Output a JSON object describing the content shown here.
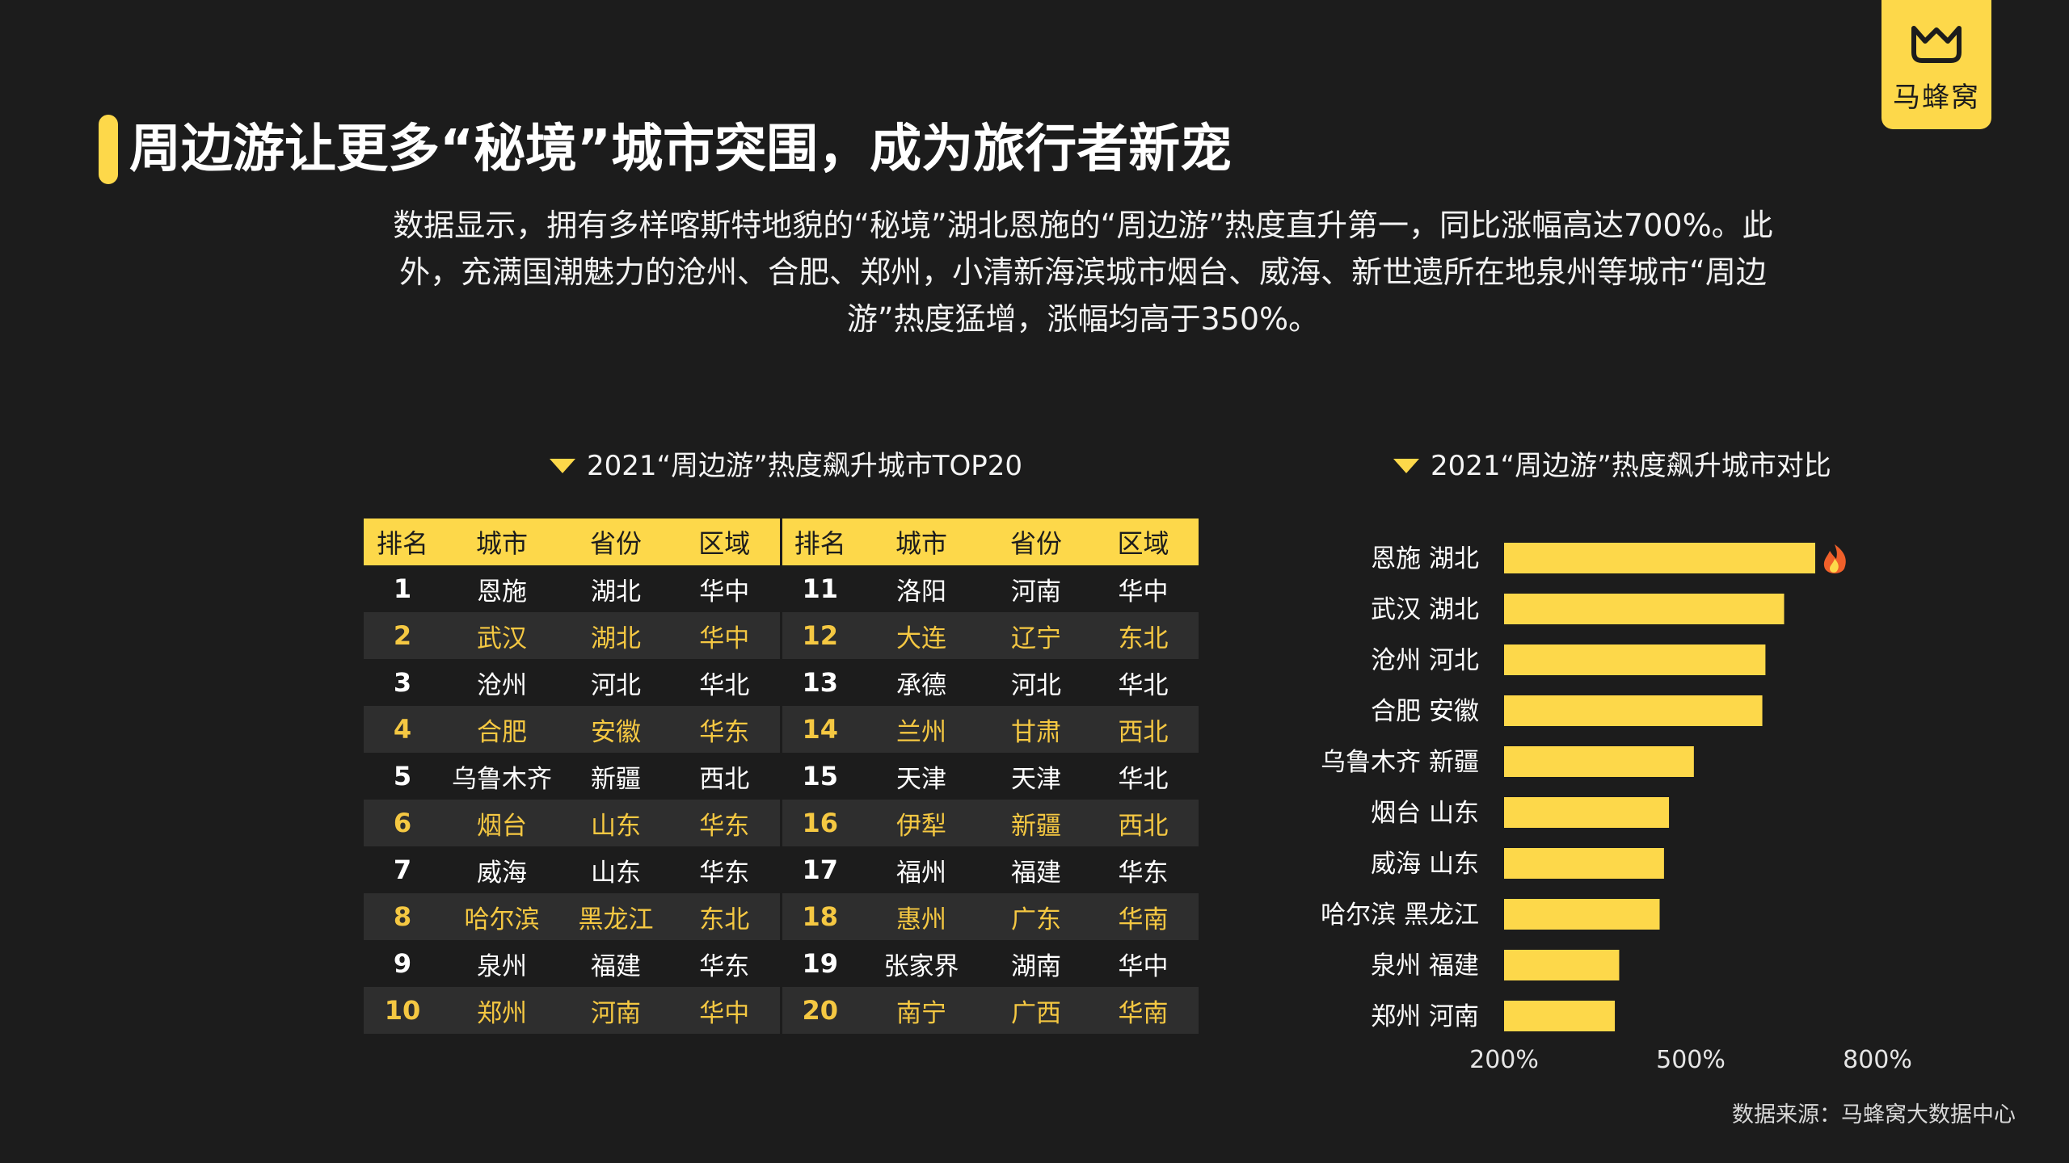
{
  "logo": {
    "brand": "马蜂窝"
  },
  "title": "周边游让更多“秘境”城市突围，成为旅行者新宠",
  "intro": "数据显示，拥有多样喀斯特地貌的“秘境”湖北恩施的“周边游”热度直升第一，同比涨幅高达700%。此外，充满国潮魅力的沧州、合肥、郑州，小清新海滨城市烟台、威海、新世遗所在地泉州等城市“周边游”热度猛增，涨幅均高于350%。",
  "table": {
    "title": "2021“周边游”热度飙升城市TOP20",
    "headers": [
      "排名",
      "城市",
      "省份",
      "区域",
      "排名",
      "城市",
      "省份",
      "区域"
    ],
    "rows": [
      [
        "1",
        "恩施",
        "湖北",
        "华中",
        "11",
        "洛阳",
        "河南",
        "华中"
      ],
      [
        "2",
        "武汉",
        "湖北",
        "华中",
        "12",
        "大连",
        "辽宁",
        "东北"
      ],
      [
        "3",
        "沧州",
        "河北",
        "华北",
        "13",
        "承德",
        "河北",
        "华北"
      ],
      [
        "4",
        "合肥",
        "安徽",
        "华东",
        "14",
        "兰州",
        "甘肃",
        "西北"
      ],
      [
        "5",
        "乌鲁木齐",
        "新疆",
        "西北",
        "15",
        "天津",
        "天津",
        "华北"
      ],
      [
        "6",
        "烟台",
        "山东",
        "华东",
        "16",
        "伊犁",
        "新疆",
        "西北"
      ],
      [
        "7",
        "威海",
        "山东",
        "华东",
        "17",
        "福州",
        "福建",
        "华东"
      ],
      [
        "8",
        "哈尔滨",
        "黑龙江",
        "东北",
        "18",
        "惠州",
        "广东",
        "华南"
      ],
      [
        "9",
        "泉州",
        "福建",
        "华东",
        "19",
        "张家界",
        "湖南",
        "华中"
      ],
      [
        "10",
        "郑州",
        "河南",
        "华中",
        "20",
        "南宁",
        "广西",
        "华南"
      ]
    ]
  },
  "chart_data": {
    "type": "bar",
    "orientation": "horizontal",
    "title": "2021“周边游”热度飙升城市对比",
    "categories": [
      "恩施 湖北",
      "武汉 湖北",
      "沧州 河北",
      "合肥 安徽",
      "乌鲁木齐 新疆",
      "烟台 山东",
      "威海 山东",
      "哈尔滨 黑龙江",
      "泉州 福建",
      "郑州 河南"
    ],
    "values": [
      700,
      650,
      620,
      615,
      505,
      465,
      457,
      450,
      385,
      378
    ],
    "unit": "%",
    "xlim": [
      200,
      800
    ],
    "xticks": [
      200,
      500,
      800
    ],
    "xtick_labels": [
      "200%",
      "500%",
      "800%"
    ],
    "bar_color": "#fdd84a",
    "highlight_icon": "fire-icon",
    "grid": false
  },
  "source": "数据来源：马蜂窝大数据中心"
}
